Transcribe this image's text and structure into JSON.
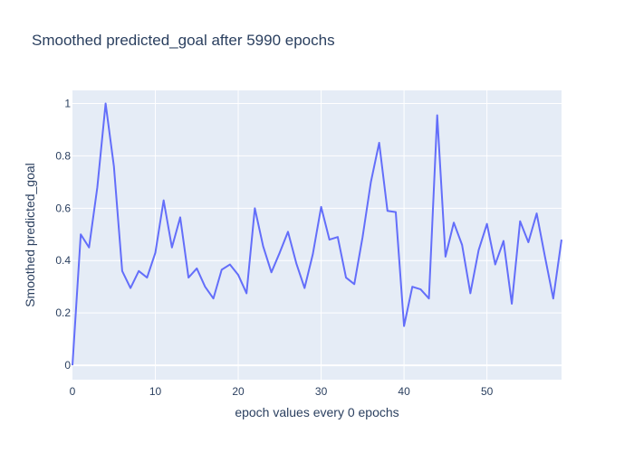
{
  "chart_data": {
    "type": "line",
    "title": "Smoothed predicted_goal after 5990 epochs",
    "xlabel": "epoch values every 0 epochs",
    "ylabel": "Smoothed predicted_goal",
    "xlim": [
      0,
      59
    ],
    "ylim": [
      -0.055,
      1.05
    ],
    "xticks": [
      0,
      10,
      20,
      30,
      40,
      50
    ],
    "yticks": [
      0,
      0.2,
      0.4,
      0.6,
      0.8,
      1
    ],
    "ytick_labels": [
      "0",
      "0.2",
      "0.4",
      "0.6",
      "0.8",
      "1"
    ],
    "grid": true,
    "colors": {
      "line": "#636efa",
      "plot_bg": "#e5ecf6",
      "grid": "#ffffff",
      "text": "#2a3f5f"
    },
    "series": [
      {
        "name": "predicted_goal",
        "x": [
          0,
          1,
          2,
          3,
          4,
          5,
          6,
          7,
          8,
          9,
          10,
          11,
          12,
          13,
          14,
          15,
          16,
          17,
          18,
          19,
          20,
          21,
          22,
          23,
          24,
          25,
          26,
          27,
          28,
          29,
          30,
          31,
          32,
          33,
          34,
          35,
          36,
          37,
          38,
          39,
          40,
          41,
          42,
          43,
          44,
          45,
          46,
          47,
          48,
          49,
          50,
          51,
          52,
          53,
          54,
          55,
          56,
          57,
          58,
          59
        ],
        "values": [
          0.0,
          0.5,
          0.45,
          0.68,
          1.0,
          0.76,
          0.36,
          0.295,
          0.36,
          0.335,
          0.43,
          0.63,
          0.45,
          0.565,
          0.335,
          0.37,
          0.3,
          0.255,
          0.365,
          0.385,
          0.345,
          0.275,
          0.6,
          0.455,
          0.355,
          0.43,
          0.51,
          0.39,
          0.295,
          0.425,
          0.605,
          0.48,
          0.49,
          0.335,
          0.31,
          0.49,
          0.7,
          0.85,
          0.59,
          0.585,
          0.15,
          0.3,
          0.29,
          0.255,
          0.955,
          0.415,
          0.545,
          0.46,
          0.275,
          0.44,
          0.54,
          0.385,
          0.475,
          0.235,
          0.55,
          0.47,
          0.58,
          0.415,
          0.255,
          0.48
        ]
      }
    ]
  }
}
